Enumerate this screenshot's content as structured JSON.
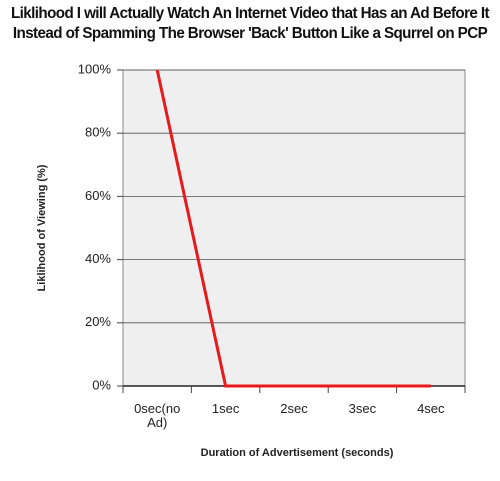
{
  "chart_data": {
    "type": "line",
    "title": "Liklihood I will Actually Watch An Internet Video that Has an Ad Before It Instead of Spamming The Browser 'Back' Button Like a Squrrel on PCP",
    "x_label": "Duration of Advertisement (seconds)",
    "y_label": "Liklihood of Viewing (%)",
    "categories": [
      "0sec(no Ad)",
      "1sec",
      "2sec",
      "3sec",
      "4sec"
    ],
    "series": [
      {
        "name": "Liklihood of Viewing",
        "color": "#e8191c",
        "values": [
          100,
          0,
          0,
          0,
          0
        ]
      }
    ],
    "ylim": [
      0,
      100
    ],
    "yticks": [
      {
        "value": 0,
        "label": "0%"
      },
      {
        "value": 20,
        "label": "20%"
      },
      {
        "value": 40,
        "label": "40%"
      },
      {
        "value": 60,
        "label": "60%"
      },
      {
        "value": 80,
        "label": "80%"
      },
      {
        "value": 100,
        "label": "100%"
      }
    ],
    "grid": true
  }
}
